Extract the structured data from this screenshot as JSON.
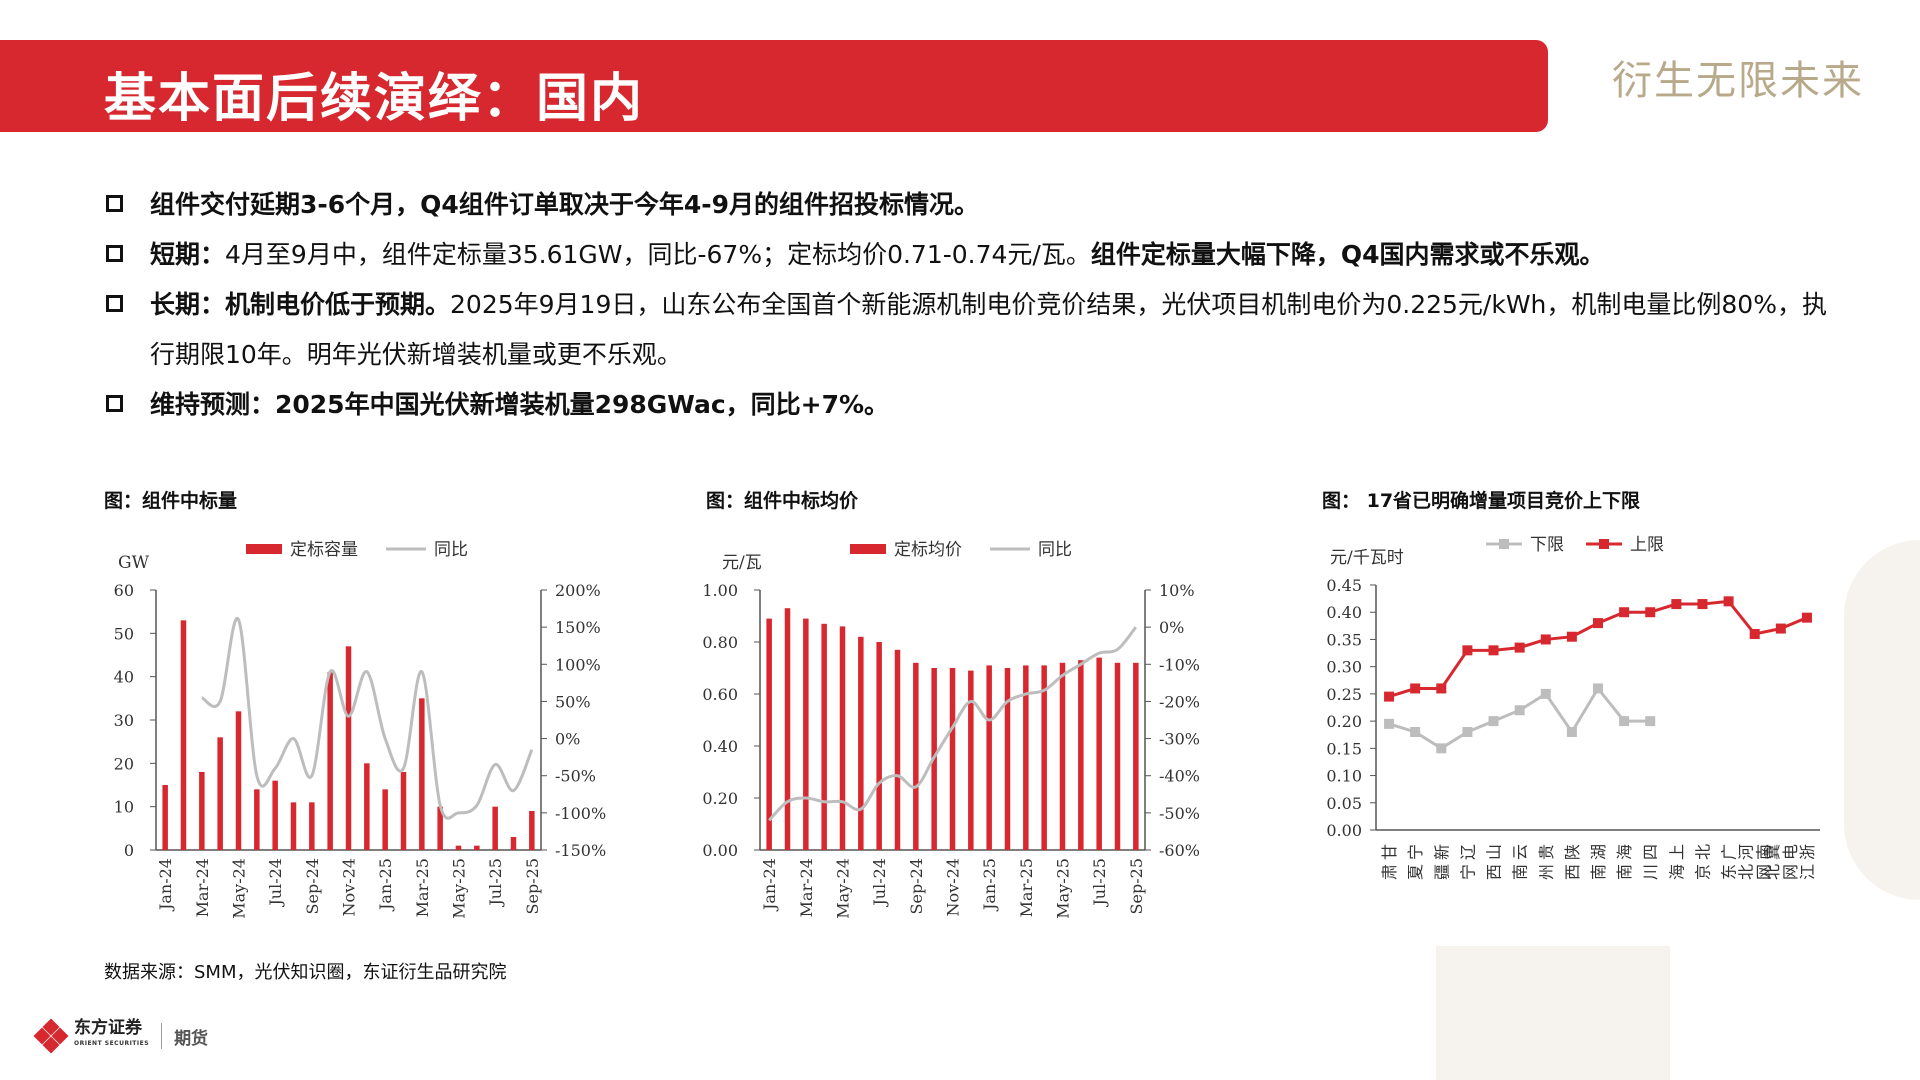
{
  "header": {
    "title": "基本面后续演绎：国内",
    "slogan": "衍生无限未来"
  },
  "bullets": [
    {
      "lead": "组件交付延期3-6个月，Q4组件订单取决于今年4-9月的组件招投标情况。",
      "text": "",
      "tail": ""
    },
    {
      "lead": "短期：",
      "text": "4月至9月中，组件定标量35.61GW，同比-67%；定标均价0.71-0.74元/瓦。",
      "tail": "组件定标量大幅下降，Q4国内需求或不乐观。"
    },
    {
      "lead": "长期：机制电价低于预期。",
      "text": "2025年9月19日，山东公布全国首个新能源机制电价竞价结果，光伏项目机制电价为0.225元/kWh，机制电量比例80%，执行期限10年。明年光伏新增装机量或更不乐观。",
      "tail": ""
    },
    {
      "lead": "维持预测：2025年中国光伏新增装机量298GWac，同比+7%。",
      "text": "",
      "tail": ""
    }
  ],
  "footer": {
    "source": "数据来源：SMM，光伏知识圈，东证衍生品研究院",
    "logo_name": "东方证券",
    "logo_sub": "ORIENT SECURITIES",
    "logo_futures": "期货"
  },
  "colors": {
    "brand_red": "#d7282f",
    "grey": "#bdbdbd",
    "slogan": "#b8a98a"
  },
  "chart_data": [
    {
      "caption": "图：组件中标量",
      "type": "bar",
      "ylabel": "GW",
      "ylim": [
        0,
        60
      ],
      "yticks": [
        "0",
        "10",
        "20",
        "30",
        "40",
        "50",
        "60"
      ],
      "y2lim": [
        -150,
        200
      ],
      "y2ticks": [
        "-150%",
        "-100%",
        "-50%",
        "0%",
        "50%",
        "100%",
        "150%",
        "200%"
      ],
      "x_tick_labels": [
        "Jan-24",
        "Mar-24",
        "May-24",
        "Jul-24",
        "Sep-24",
        "Nov-24",
        "Jan-25",
        "Mar-25",
        "May-25",
        "Jul-25",
        "Sep-25"
      ],
      "categories": [
        "Jan-24",
        "Feb-24",
        "Mar-24",
        "Apr-24",
        "May-24",
        "Jun-24",
        "Jul-24",
        "Aug-24",
        "Sep-24",
        "Oct-24",
        "Nov-24",
        "Dec-24",
        "Jan-25",
        "Feb-25",
        "Mar-25",
        "Apr-25",
        "May-25",
        "Jun-25",
        "Jul-25",
        "Aug-25",
        "Sep-25"
      ],
      "series": [
        {
          "name": "定标容量",
          "kind": "bar",
          "axis": "left",
          "values": [
            15,
            53,
            18,
            26,
            32,
            14,
            16,
            11,
            11,
            41,
            47,
            20,
            14,
            18,
            35,
            10,
            1,
            1,
            10,
            3,
            9
          ]
        },
        {
          "name": "同比",
          "kind": "line",
          "axis": "right",
          "values": [
            null,
            null,
            55,
            50,
            160,
            -50,
            -40,
            0,
            -50,
            90,
            30,
            90,
            0,
            -40,
            90,
            -90,
            -100,
            -90,
            -35,
            -70,
            -15
          ]
        }
      ],
      "legend": "top"
    },
    {
      "caption": "图：组件中标均价",
      "type": "bar",
      "ylabel": "元/瓦",
      "ylim": [
        0,
        1
      ],
      "yticks": [
        "0.00",
        "0.20",
        "0.40",
        "0.60",
        "0.80",
        "1.00"
      ],
      "y2lim": [
        -60,
        10
      ],
      "y2ticks": [
        "-60%",
        "-50%",
        "-40%",
        "-30%",
        "-20%",
        "-10%",
        "0%",
        "10%"
      ],
      "x_tick_labels": [
        "Jan-24",
        "Mar-24",
        "May-24",
        "Jul-24",
        "Sep-24",
        "Nov-24",
        "Jan-25",
        "Mar-25",
        "May-25",
        "Jul-25",
        "Sep-25"
      ],
      "categories": [
        "Jan-24",
        "Feb-24",
        "Mar-24",
        "Apr-24",
        "May-24",
        "Jun-24",
        "Jul-24",
        "Aug-24",
        "Sep-24",
        "Oct-24",
        "Nov-24",
        "Dec-24",
        "Jan-25",
        "Feb-25",
        "Mar-25",
        "Apr-25",
        "May-25",
        "Jun-25",
        "Jul-25",
        "Aug-25",
        "Sep-25"
      ],
      "series": [
        {
          "name": "定标均价",
          "kind": "bar",
          "axis": "left",
          "values": [
            0.89,
            0.93,
            0.89,
            0.87,
            0.86,
            0.82,
            0.8,
            0.77,
            0.72,
            0.7,
            0.7,
            0.69,
            0.71,
            0.7,
            0.71,
            0.71,
            0.72,
            0.73,
            0.74,
            0.72,
            0.72
          ]
        },
        {
          "name": "同比",
          "kind": "line",
          "axis": "right",
          "values": [
            -52,
            -47,
            -46,
            -47,
            -47,
            -49,
            -42,
            -40,
            -43,
            -35,
            -27,
            -20,
            -25,
            -20,
            -18,
            -17,
            -13,
            -10,
            -7,
            -6,
            0
          ]
        }
      ],
      "legend": "top"
    },
    {
      "caption": "图： 17省已明确增量项目竞价上下限",
      "type": "line",
      "ylabel": "元/千瓦时",
      "ylim": [
        0,
        0.45
      ],
      "yticks": [
        "0.00",
        "0.05",
        "0.10",
        "0.15",
        "0.20",
        "0.25",
        "0.30",
        "0.35",
        "0.40",
        "0.45"
      ],
      "categories": [
        "甘肃",
        "宁夏",
        "新疆",
        "辽宁",
        "山西",
        "云南",
        "贵州",
        "陕西",
        "湖南",
        "海南",
        "四川",
        "上海",
        "北京",
        "广东",
        "河北南网",
        "冀北电网",
        "浙江"
      ],
      "series": [
        {
          "name": "下限",
          "values": [
            0.195,
            0.18,
            0.15,
            0.18,
            0.2,
            0.22,
            0.25,
            0.18,
            0.26,
            0.2,
            0.2,
            null,
            null,
            null,
            null,
            null,
            null
          ]
        },
        {
          "name": "上限",
          "values": [
            0.245,
            0.26,
            0.26,
            0.33,
            0.33,
            0.335,
            0.35,
            0.355,
            0.38,
            0.4,
            0.4,
            0.415,
            0.415,
            0.42,
            0.36,
            0.37,
            0.39
          ]
        }
      ],
      "legend": "top"
    }
  ]
}
